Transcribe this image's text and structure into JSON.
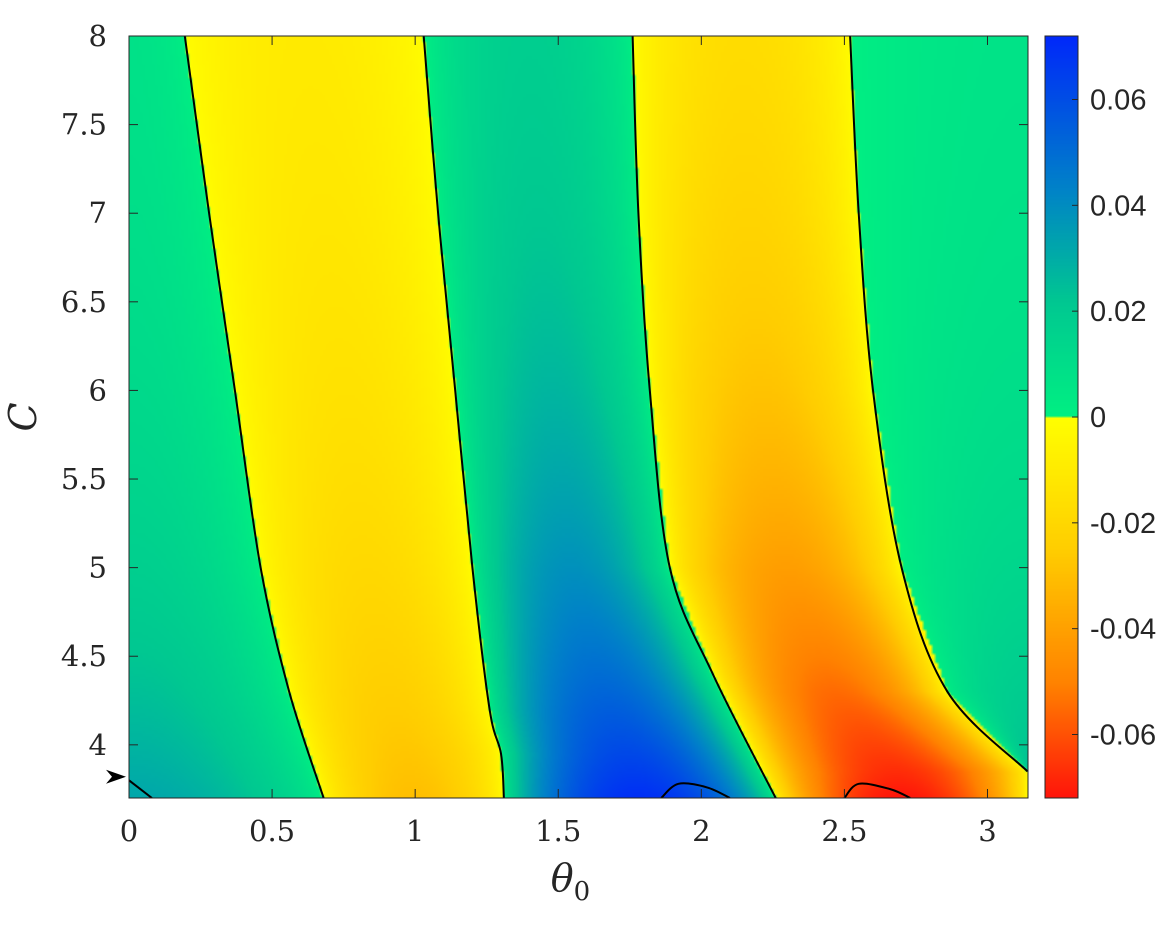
{
  "chart_data": {
    "type": "heatmap",
    "title": "",
    "xlabel": "θ",
    "xlabel_sub": "0",
    "ylabel": "C",
    "xlim": [
      0,
      3.1416
    ],
    "ylim": [
      3.7,
      8
    ],
    "x_ticks": [
      0,
      0.5,
      1,
      1.5,
      2,
      2.5,
      3
    ],
    "x_tick_labels": [
      "0",
      "0.5",
      "1",
      "1.5",
      "2",
      "2.5",
      "3"
    ],
    "y_ticks": [
      4,
      4.5,
      5,
      5.5,
      6,
      6.5,
      7,
      7.5,
      8
    ],
    "y_tick_labels": [
      "4",
      "4.5",
      "5",
      "5.5",
      "6",
      "6.5",
      "7",
      "7.5",
      "8"
    ],
    "colorbar": {
      "range": [
        -0.072,
        0.072
      ],
      "ticks": [
        0.06,
        0.04,
        0.02,
        0,
        -0.02,
        -0.04,
        -0.06
      ],
      "tick_labels": [
        "0.06",
        "0.04",
        "0.02",
        "0",
        "-0.02",
        "-0.04",
        "-0.06"
      ],
      "positive_colormap": "green-to-blue",
      "negative_colormap": "yellow-to-red"
    },
    "marker": {
      "type": "arrowhead",
      "y": 3.82
    },
    "zero_contours": [
      {
        "points": [
          [
            0.195,
            8
          ],
          [
            0.28,
            7
          ],
          [
            0.37,
            6
          ],
          [
            0.46,
            5
          ],
          [
            0.56,
            4.3
          ],
          [
            0.68,
            3.7
          ]
        ]
      },
      {
        "points": [
          [
            1.03,
            8
          ],
          [
            1.08,
            7
          ],
          [
            1.14,
            6
          ],
          [
            1.2,
            5
          ],
          [
            1.26,
            4.2
          ],
          [
            1.3,
            3.95
          ],
          [
            1.31,
            3.7
          ]
        ]
      },
      {
        "points": [
          [
            1.76,
            8
          ],
          [
            1.78,
            7
          ],
          [
            1.82,
            6
          ],
          [
            1.89,
            5
          ],
          [
            2.04,
            4.4
          ],
          [
            2.26,
            3.7
          ]
        ]
      },
      {
        "points": [
          [
            2.52,
            8
          ],
          [
            2.55,
            7
          ],
          [
            2.6,
            6
          ],
          [
            2.7,
            5
          ],
          [
            2.86,
            4.3
          ],
          [
            3.14,
            3.85
          ]
        ]
      },
      {
        "points": [
          [
            0,
            3.8
          ],
          [
            0.08,
            3.7
          ]
        ]
      },
      {
        "points": [
          [
            1.86,
            3.7
          ],
          [
            1.92,
            3.78
          ],
          [
            2.02,
            3.76
          ],
          [
            2.1,
            3.7
          ]
        ]
      },
      {
        "points": [
          [
            2.5,
            3.7
          ],
          [
            2.55,
            3.78
          ],
          [
            2.66,
            3.75
          ],
          [
            2.73,
            3.7
          ]
        ]
      }
    ],
    "field_extrema": [
      {
        "sign": "positive",
        "x": 0.0,
        "y": 3.9,
        "value": 0.035
      },
      {
        "sign": "negative",
        "x": 0.95,
        "y": 3.85,
        "value": -0.035
      },
      {
        "sign": "positive",
        "x": 1.6,
        "y": 3.75,
        "value": 0.07
      },
      {
        "sign": "negative",
        "x": 2.95,
        "y": 3.75,
        "value": -0.07
      }
    ],
    "grid": false,
    "legend": "none"
  }
}
